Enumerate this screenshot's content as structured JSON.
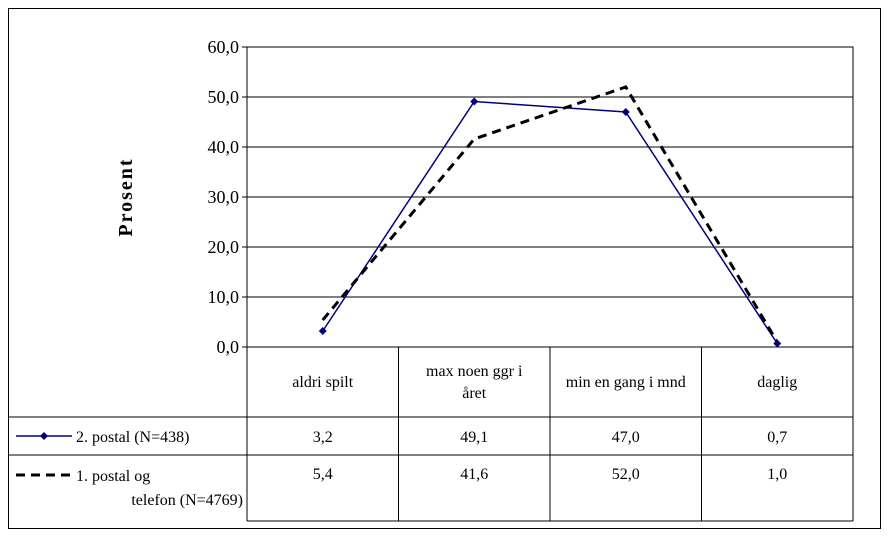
{
  "chart_data": {
    "type": "line",
    "ylabel": "Prosent",
    "ylim": [
      0,
      60
    ],
    "yticks": [
      "0,0",
      "10,0",
      "20,0",
      "30,0",
      "40,0",
      "50,0",
      "60,0"
    ],
    "ytick_values": [
      0,
      10,
      20,
      30,
      40,
      50,
      60
    ],
    "grid": true,
    "legend": "data-table",
    "categories": [
      [
        "aldri spilt"
      ],
      [
        "max noen ggr i",
        "året"
      ],
      [
        "min en gang i mnd"
      ],
      [
        "daglig"
      ]
    ],
    "series": [
      {
        "name": "2. postal (N=438)",
        "name_lines": [
          "2. postal (N=438)"
        ],
        "values": [
          3.2,
          49.1,
          47.0,
          0.7
        ],
        "labels": [
          "3,2",
          "49,1",
          "47,0",
          "0,7"
        ],
        "color": "#000080",
        "style": "solid",
        "marker": "diamond"
      },
      {
        "name": "1. postal og telefon (N=4769)",
        "name_lines": [
          "1. postal og",
          "telefon (N=4769)"
        ],
        "values": [
          5.4,
          41.6,
          52.0,
          1.0
        ],
        "labels": [
          "5,4",
          "41,6",
          "52,0",
          "1,0"
        ],
        "color": "#000000",
        "style": "dashed",
        "marker": "none"
      }
    ]
  }
}
